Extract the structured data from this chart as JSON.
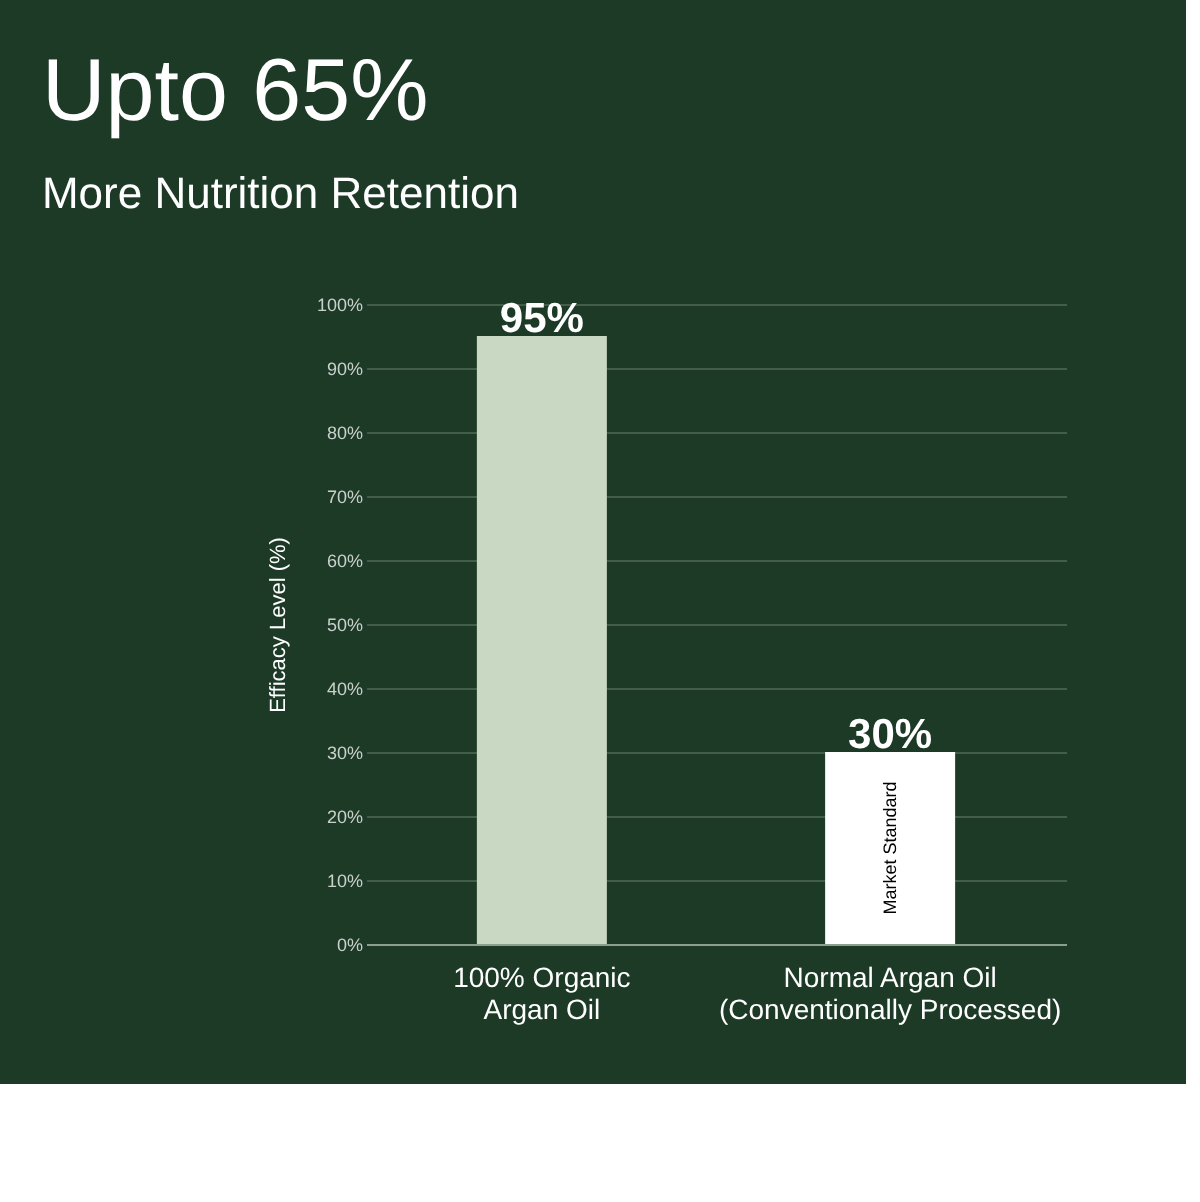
{
  "chart_data": {
    "type": "bar",
    "title": "Upto 65%",
    "subtitle": "More Nutrition Retention",
    "ylabel": "Efficacy Level (%)",
    "categories": [
      "100% Organic\nArgan Oil",
      "Normal Argan Oil\n(Conventionally Processed)"
    ],
    "values": [
      95,
      30
    ],
    "colors": [
      "#c8d8c2",
      "#ffffff"
    ],
    "value_labels": [
      "95%",
      "30%"
    ],
    "ylim": [
      0,
      100
    ],
    "yticks": [
      {
        "value": 0,
        "label": "0%"
      },
      {
        "value": 10,
        "label": "10%"
      },
      {
        "value": 20,
        "label": "20%"
      },
      {
        "value": 30,
        "label": "30%"
      },
      {
        "value": 40,
        "label": "40%"
      },
      {
        "value": 50,
        "label": "50%"
      },
      {
        "value": 60,
        "label": "60%"
      },
      {
        "value": 70,
        "label": "70%"
      },
      {
        "value": 80,
        "label": "80%"
      },
      {
        "value": 90,
        "label": "90%"
      },
      {
        "value": 100,
        "label": "100%"
      }
    ],
    "annotations": [
      "Market Standard"
    ],
    "grid": "y"
  }
}
